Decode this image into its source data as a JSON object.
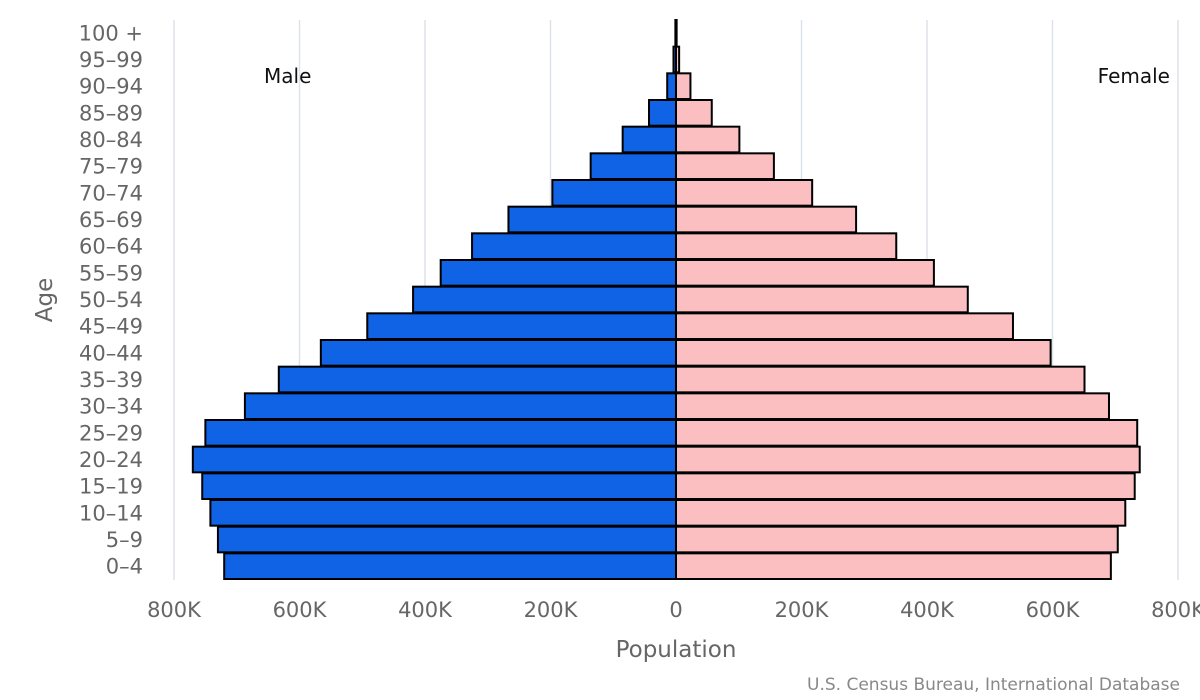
{
  "chart_data": {
    "type": "bar",
    "orientation": "horizontal",
    "subtype": "population-pyramid",
    "categories": [
      "0-4",
      "5-9",
      "10-14",
      "15-19",
      "20-24",
      "25-29",
      "30-34",
      "35-39",
      "40-44",
      "45-49",
      "50-54",
      "55-59",
      "60-64",
      "65-69",
      "70-74",
      "75-79",
      "80-84",
      "85-89",
      "90-94",
      "95-99",
      "100 +"
    ],
    "series": [
      {
        "name": "Male",
        "color": "#1163e6",
        "values": [
          720000,
          730000,
          742000,
          755000,
          770000,
          750000,
          687000,
          633000,
          566000,
          492000,
          419000,
          375000,
          325000,
          267000,
          197000,
          136000,
          85000,
          43000,
          14000,
          4000,
          1000
        ]
      },
      {
        "name": "Female",
        "color": "#fbbfc1",
        "values": [
          693000,
          704000,
          716000,
          731000,
          739000,
          735000,
          690000,
          651000,
          597000,
          537000,
          465000,
          411000,
          351000,
          287000,
          217000,
          156000,
          101000,
          57000,
          23000,
          5000,
          1000
        ]
      }
    ],
    "xlabel": "Population",
    "ylabel": "Age",
    "xlim": [
      -800000,
      800000
    ],
    "xticks": [
      {
        "value": -800000,
        "label": "800K"
      },
      {
        "value": -600000,
        "label": "600K"
      },
      {
        "value": -400000,
        "label": "400K"
      },
      {
        "value": -200000,
        "label": "200K"
      },
      {
        "value": 0,
        "label": "0"
      },
      {
        "value": 200000,
        "label": "200K"
      },
      {
        "value": 400000,
        "label": "400K"
      },
      {
        "value": 600000,
        "label": "600K"
      },
      {
        "value": 800000,
        "label": "800K"
      }
    ],
    "grid": true,
    "side_labels": {
      "left": "Male",
      "right": "Female"
    },
    "source": "U.S. Census Bureau, International Database"
  }
}
